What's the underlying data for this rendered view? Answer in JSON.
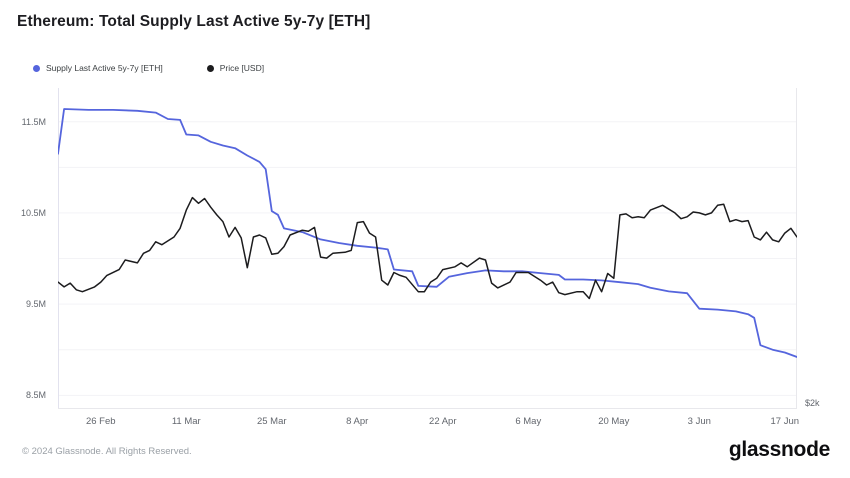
{
  "header": {
    "title": "Ethereum: Total Supply Last Active 5y-7y [ETH]"
  },
  "legend": [
    {
      "label": "Supply Last Active 5y-7y [ETH]",
      "color": "#5565dd"
    },
    {
      "label": "Price [USD]",
      "color": "#1c1c1e"
    }
  ],
  "footer": {
    "copyright": "© 2024 Glassnode. All Rights Reserved.",
    "brand": "glassnode"
  },
  "chart_data": {
    "type": "line",
    "title": "Ethereum: Total Supply Last Active 5y-7y [ETH]",
    "grid": true,
    "legend_position": "top-left",
    "x_range": [
      "2024-02-19",
      "2024-06-19"
    ],
    "x_ticks": [
      {
        "label": "26 Feb",
        "date": "2024-02-26"
      },
      {
        "label": "11 Mar",
        "date": "2024-03-11"
      },
      {
        "label": "25 Mar",
        "date": "2024-03-25"
      },
      {
        "label": "8 Apr",
        "date": "2024-04-08"
      },
      {
        "label": "22 Apr",
        "date": "2024-04-22"
      },
      {
        "label": "6 May",
        "date": "2024-05-06"
      },
      {
        "label": "20 May",
        "date": "2024-05-20"
      },
      {
        "label": "3 Jun",
        "date": "2024-06-03"
      },
      {
        "label": "17 Jun",
        "date": "2024-06-17"
      }
    ],
    "left_axis": {
      "unit": "ETH (millions)",
      "ylim": [
        8.35,
        11.87
      ],
      "ticks": [
        {
          "label": "11.5M",
          "value": 11.5
        },
        {
          "label": "10.5M",
          "value": 10.5
        },
        {
          "label": "9.5M",
          "value": 9.5
        },
        {
          "label": "8.5M",
          "value": 8.5
        }
      ],
      "gridline_values": [
        8.5,
        9.0,
        9.5,
        10.0,
        10.5,
        11.0,
        11.5
      ]
    },
    "right_axis": {
      "unit": "USD (thousands)",
      "ylim": [
        1.94,
        5.28
      ],
      "ticks": [
        {
          "label": "$2k",
          "value": 2
        }
      ]
    },
    "series": [
      {
        "name": "Supply Last Active 5y-7y [ETH]",
        "color": "#5565dd",
        "width": 1.8,
        "axis": "left",
        "points": [
          [
            "2024-02-19",
            11.15
          ],
          [
            "2024-02-20",
            11.64
          ],
          [
            "2024-02-24",
            11.63
          ],
          [
            "2024-02-28",
            11.63
          ],
          [
            "2024-03-03",
            11.62
          ],
          [
            "2024-03-06",
            11.6
          ],
          [
            "2024-03-08",
            11.53
          ],
          [
            "2024-03-10",
            11.52
          ],
          [
            "2024-03-11",
            11.36
          ],
          [
            "2024-03-13",
            11.35
          ],
          [
            "2024-03-15",
            11.28
          ],
          [
            "2024-03-17",
            11.24
          ],
          [
            "2024-03-19",
            11.21
          ],
          [
            "2024-03-21",
            11.13
          ],
          [
            "2024-03-23",
            11.06
          ],
          [
            "2024-03-24",
            10.98
          ],
          [
            "2024-03-25",
            10.52
          ],
          [
            "2024-03-26",
            10.48
          ],
          [
            "2024-03-27",
            10.33
          ],
          [
            "2024-03-30",
            10.29
          ],
          [
            "2024-04-02",
            10.21
          ],
          [
            "2024-04-05",
            10.17
          ],
          [
            "2024-04-08",
            10.14
          ],
          [
            "2024-04-11",
            10.12
          ],
          [
            "2024-04-13",
            10.1
          ],
          [
            "2024-04-14",
            9.88
          ],
          [
            "2024-04-17",
            9.86
          ],
          [
            "2024-04-18",
            9.7
          ],
          [
            "2024-04-21",
            9.69
          ],
          [
            "2024-04-23",
            9.8
          ],
          [
            "2024-04-26",
            9.84
          ],
          [
            "2024-04-29",
            9.87
          ],
          [
            "2024-05-02",
            9.86
          ],
          [
            "2024-05-05",
            9.86
          ],
          [
            "2024-05-08",
            9.84
          ],
          [
            "2024-05-11",
            9.82
          ],
          [
            "2024-05-12",
            9.77
          ],
          [
            "2024-05-15",
            9.77
          ],
          [
            "2024-05-18",
            9.76
          ],
          [
            "2024-05-21",
            9.74
          ],
          [
            "2024-05-24",
            9.72
          ],
          [
            "2024-05-26",
            9.68
          ],
          [
            "2024-05-29",
            9.64
          ],
          [
            "2024-06-01",
            9.62
          ],
          [
            "2024-06-03",
            9.45
          ],
          [
            "2024-06-06",
            9.44
          ],
          [
            "2024-06-09",
            9.42
          ],
          [
            "2024-06-11",
            9.39
          ],
          [
            "2024-06-12",
            9.35
          ],
          [
            "2024-06-13",
            9.05
          ],
          [
            "2024-06-15",
            9.0
          ],
          [
            "2024-06-17",
            8.97
          ],
          [
            "2024-06-19",
            8.92
          ]
        ]
      },
      {
        "name": "Price [USD]",
        "color": "#1c1c1e",
        "width": 1.5,
        "axis": "right",
        "points": [
          [
            "2024-02-19",
            3.26
          ],
          [
            "2024-02-20",
            3.21
          ],
          [
            "2024-02-21",
            3.25
          ],
          [
            "2024-02-22",
            3.18
          ],
          [
            "2024-02-23",
            3.16
          ],
          [
            "2024-02-25",
            3.21
          ],
          [
            "2024-02-26",
            3.26
          ],
          [
            "2024-02-27",
            3.33
          ],
          [
            "2024-02-29",
            3.39
          ],
          [
            "2024-03-01",
            3.49
          ],
          [
            "2024-03-03",
            3.46
          ],
          [
            "2024-03-04",
            3.56
          ],
          [
            "2024-03-05",
            3.59
          ],
          [
            "2024-03-06",
            3.68
          ],
          [
            "2024-03-07",
            3.65
          ],
          [
            "2024-03-09",
            3.73
          ],
          [
            "2024-03-10",
            3.82
          ],
          [
            "2024-03-11",
            4.01
          ],
          [
            "2024-03-12",
            4.14
          ],
          [
            "2024-03-13",
            4.08
          ],
          [
            "2024-03-14",
            4.13
          ],
          [
            "2024-03-15",
            4.04
          ],
          [
            "2024-03-16",
            3.96
          ],
          [
            "2024-03-17",
            3.89
          ],
          [
            "2024-03-18",
            3.73
          ],
          [
            "2024-03-19",
            3.83
          ],
          [
            "2024-03-20",
            3.72
          ],
          [
            "2024-03-21",
            3.41
          ],
          [
            "2024-03-22",
            3.73
          ],
          [
            "2024-03-23",
            3.75
          ],
          [
            "2024-03-24",
            3.72
          ],
          [
            "2024-03-25",
            3.55
          ],
          [
            "2024-03-26",
            3.56
          ],
          [
            "2024-03-27",
            3.63
          ],
          [
            "2024-03-28",
            3.75
          ],
          [
            "2024-03-30",
            3.8
          ],
          [
            "2024-03-31",
            3.79
          ],
          [
            "2024-04-01",
            3.83
          ],
          [
            "2024-04-02",
            3.52
          ],
          [
            "2024-04-03",
            3.51
          ],
          [
            "2024-04-04",
            3.56
          ],
          [
            "2024-04-06",
            3.57
          ],
          [
            "2024-04-07",
            3.59
          ],
          [
            "2024-04-08",
            3.88
          ],
          [
            "2024-04-09",
            3.89
          ],
          [
            "2024-04-10",
            3.77
          ],
          [
            "2024-04-11",
            3.73
          ],
          [
            "2024-04-12",
            3.28
          ],
          [
            "2024-04-13",
            3.23
          ],
          [
            "2024-04-14",
            3.36
          ],
          [
            "2024-04-15",
            3.33
          ],
          [
            "2024-04-16",
            3.31
          ],
          [
            "2024-04-18",
            3.16
          ],
          [
            "2024-04-19",
            3.16
          ],
          [
            "2024-04-20",
            3.26
          ],
          [
            "2024-04-21",
            3.3
          ],
          [
            "2024-04-22",
            3.39
          ],
          [
            "2024-04-24",
            3.42
          ],
          [
            "2024-04-25",
            3.46
          ],
          [
            "2024-04-26",
            3.42
          ],
          [
            "2024-04-28",
            3.51
          ],
          [
            "2024-04-29",
            3.49
          ],
          [
            "2024-04-30",
            3.25
          ],
          [
            "2024-05-01",
            3.2
          ],
          [
            "2024-05-03",
            3.26
          ],
          [
            "2024-05-04",
            3.36
          ],
          [
            "2024-05-06",
            3.36
          ],
          [
            "2024-05-08",
            3.28
          ],
          [
            "2024-05-09",
            3.23
          ],
          [
            "2024-05-10",
            3.26
          ],
          [
            "2024-05-11",
            3.15
          ],
          [
            "2024-05-12",
            3.13
          ],
          [
            "2024-05-14",
            3.16
          ],
          [
            "2024-05-15",
            3.16
          ],
          [
            "2024-05-16",
            3.09
          ],
          [
            "2024-05-17",
            3.28
          ],
          [
            "2024-05-18",
            3.16
          ],
          [
            "2024-05-19",
            3.35
          ],
          [
            "2024-05-20",
            3.3
          ],
          [
            "2024-05-21",
            3.96
          ],
          [
            "2024-05-22",
            3.97
          ],
          [
            "2024-05-23",
            3.93
          ],
          [
            "2024-05-24",
            3.94
          ],
          [
            "2024-05-25",
            3.93
          ],
          [
            "2024-05-26",
            4.01
          ],
          [
            "2024-05-28",
            4.06
          ],
          [
            "2024-05-30",
            3.98
          ],
          [
            "2024-05-31",
            3.92
          ],
          [
            "2024-06-01",
            3.94
          ],
          [
            "2024-06-02",
            3.99
          ],
          [
            "2024-06-03",
            3.98
          ],
          [
            "2024-06-04",
            3.96
          ],
          [
            "2024-06-05",
            3.98
          ],
          [
            "2024-06-06",
            4.06
          ],
          [
            "2024-06-07",
            4.07
          ],
          [
            "2024-06-08",
            3.89
          ],
          [
            "2024-06-09",
            3.91
          ],
          [
            "2024-06-10",
            3.89
          ],
          [
            "2024-06-11",
            3.9
          ],
          [
            "2024-06-12",
            3.73
          ],
          [
            "2024-06-13",
            3.7
          ],
          [
            "2024-06-14",
            3.78
          ],
          [
            "2024-06-15",
            3.7
          ],
          [
            "2024-06-16",
            3.68
          ],
          [
            "2024-06-17",
            3.77
          ],
          [
            "2024-06-18",
            3.82
          ],
          [
            "2024-06-19",
            3.73
          ]
        ]
      }
    ]
  }
}
